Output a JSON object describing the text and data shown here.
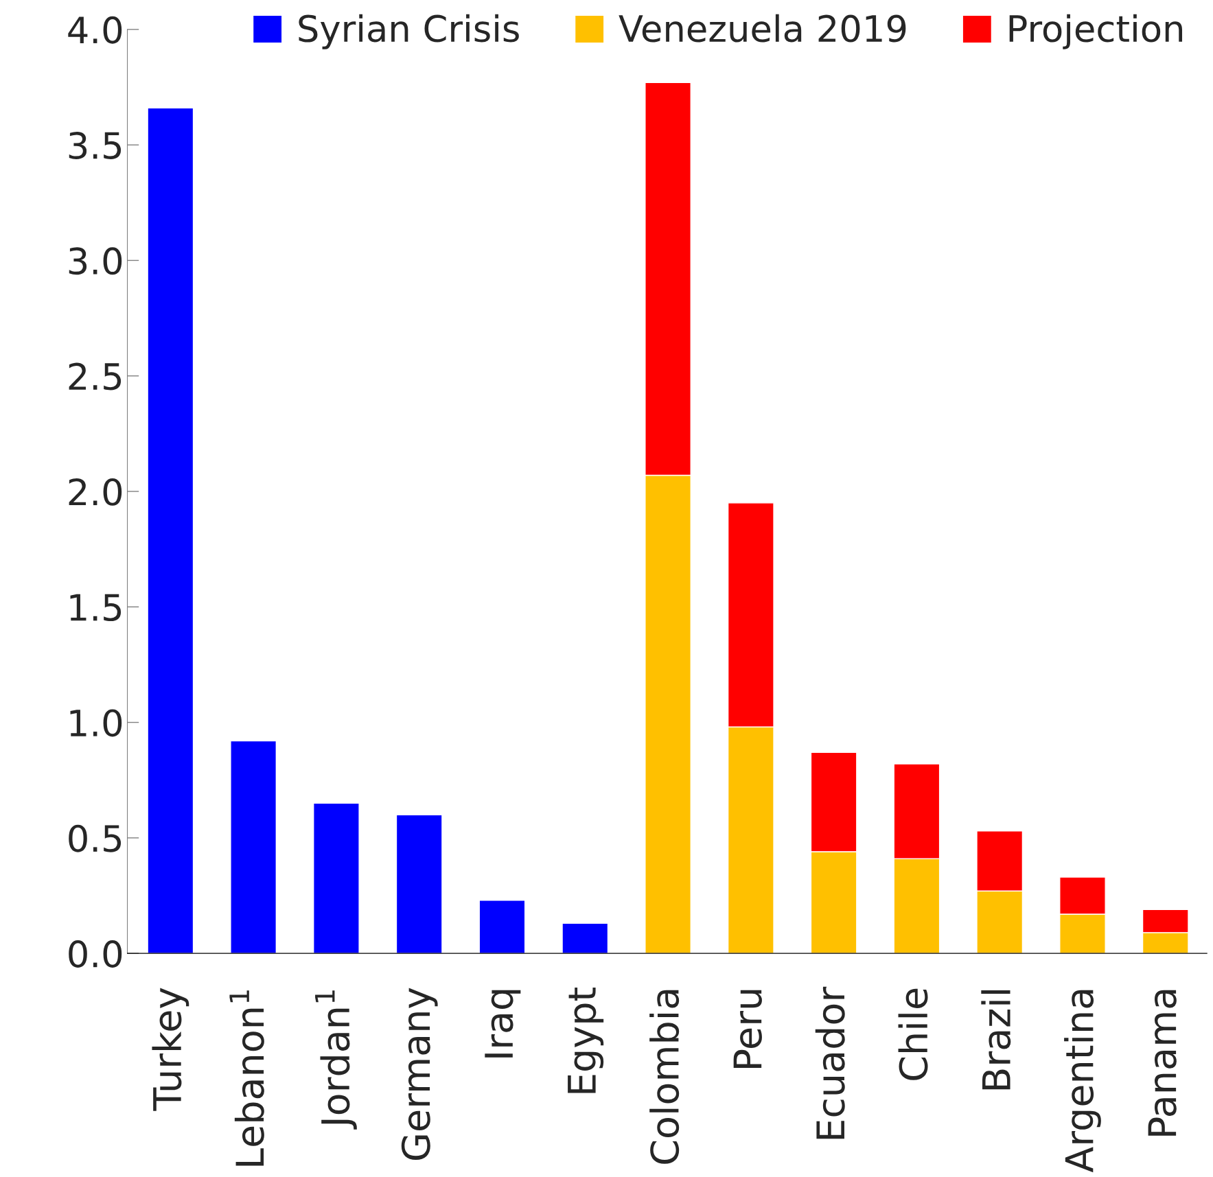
{
  "chart_data": {
    "type": "bar",
    "stacked": true,
    "categories": [
      "Turkey",
      "Lebanon$^{1}$",
      "Jordan$^{1}$",
      "Germany",
      "Iraq",
      "Egypt",
      "Colombia",
      "Peru",
      "Ecuador",
      "Chile",
      "Brazil",
      "Argentina",
      "Panama"
    ],
    "series": [
      {
        "name": "Syrian Crisis",
        "color": "#0000ff",
        "values": [
          3.66,
          0.92,
          0.65,
          0.6,
          0.23,
          0.13,
          null,
          null,
          null,
          null,
          null,
          null,
          null
        ]
      },
      {
        "name": "Venezuela 2019",
        "color": "#ffc000",
        "values": [
          null,
          null,
          null,
          null,
          null,
          null,
          2.07,
          0.98,
          0.44,
          0.41,
          0.27,
          0.17,
          0.09
        ]
      },
      {
        "name": "Projection",
        "color": "#ff0000",
        "values": [
          null,
          null,
          null,
          null,
          null,
          null,
          1.7,
          0.97,
          0.43,
          0.41,
          0.26,
          0.16,
          0.1
        ]
      }
    ],
    "ylim": [
      0,
      4.0
    ],
    "yticks": [
      {
        "value": 0,
        "label": "0.0"
      },
      {
        "value": 0.5,
        "label": "0.5"
      },
      {
        "value": 1,
        "label": "1.0"
      },
      {
        "value": 1.5,
        "label": "1.5"
      },
      {
        "value": 2,
        "label": "2.0"
      },
      {
        "value": 2.5,
        "label": "2.5"
      },
      {
        "value": 3,
        "label": "3.0"
      },
      {
        "value": 3.5,
        "label": "3.5"
      },
      {
        "value": 4,
        "label": "4.0"
      }
    ],
    "grid": false,
    "legend": "top"
  }
}
